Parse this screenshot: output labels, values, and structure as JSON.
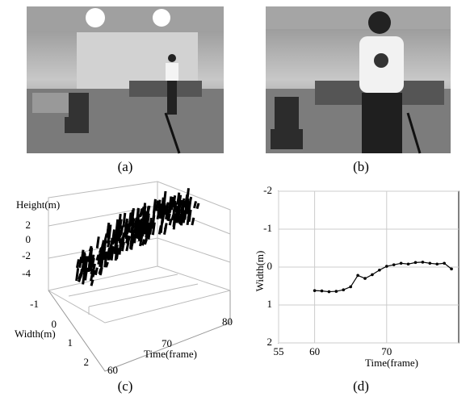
{
  "panel_labels": [
    "(a)",
    "(b)",
    "(c)",
    "(d)"
  ],
  "plot_3d": {
    "z_label": "Height(m)",
    "z_ticks": [
      2,
      0,
      -2,
      -4
    ],
    "y_label": "Width(m)",
    "y_ticks": [
      -1,
      0,
      1,
      2
    ],
    "x_label": "Time(frame)",
    "x_ticks": [
      60,
      70,
      80
    ]
  },
  "chart_data": {
    "type": "line",
    "xlabel": "Time(frame)",
    "ylabel": "Width(m)",
    "x": [
      60,
      61,
      62,
      63,
      64,
      65,
      66,
      67,
      68,
      69,
      70,
      71,
      72,
      73,
      74,
      75,
      76,
      77,
      78,
      79
    ],
    "values": [
      0.62,
      0.63,
      0.65,
      0.64,
      0.6,
      0.52,
      0.22,
      0.3,
      0.2,
      0.08,
      -0.02,
      -0.06,
      -0.1,
      -0.08,
      -0.12,
      -0.13,
      -0.1,
      -0.08,
      -0.1,
      0.05
    ],
    "color": "#000000",
    "xlim": [
      55,
      80
    ],
    "xticks": [
      55,
      60,
      70
    ],
    "ylim": [
      -2,
      2
    ],
    "y_inverted": true,
    "yticks": [
      -2,
      -1,
      0,
      1,
      2
    ],
    "grid": true
  }
}
